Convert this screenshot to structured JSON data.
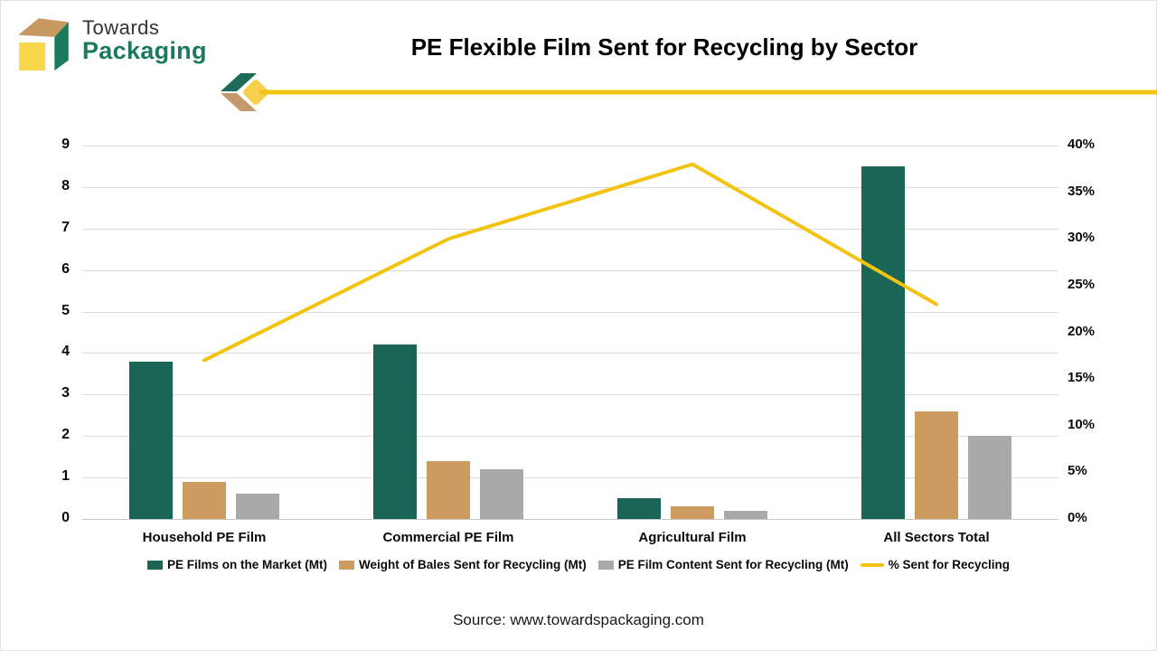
{
  "brand": {
    "towards": "Towards",
    "packaging": "Packaging"
  },
  "title": "PE Flexible Film Sent for Recycling by Sector",
  "source": "Source: www.towardspackaging.com",
  "colors": {
    "bar_green": "#1A6556",
    "bar_tan": "#CD9A60",
    "bar_gray": "#A9A9A9",
    "line_yellow": "#F2C411",
    "logo_green": "#1B7A5E",
    "logo_tan": "#C89A62",
    "logo_yellow": "#F9D64A",
    "divider_yellow": "#F2C411",
    "gridline": "#DCDCDC"
  },
  "chart_data": {
    "type": "bar",
    "subtype": "grouped-bars-with-line-overlay",
    "title": "PE Flexible Film Sent for Recycling by Sector",
    "categories": [
      "Household PE Film",
      "Commercial PE Film",
      "Agricultural Film",
      "All Sectors Total"
    ],
    "series": [
      {
        "name": "PE Films on the Market (Mt)",
        "type": "bar",
        "color": "#1A6556",
        "values": [
          3.8,
          4.2,
          0.5,
          8.5
        ]
      },
      {
        "name": "Weight of Bales Sent for Recycling (Mt)",
        "type": "bar",
        "color": "#CD9A60",
        "values": [
          0.9,
          1.4,
          0.3,
          2.6
        ]
      },
      {
        "name": "PE Film Content Sent for Recycling (Mt)",
        "type": "bar",
        "color": "#A9A9A9",
        "values": [
          0.6,
          1.2,
          0.2,
          2.0
        ]
      },
      {
        "name": "% Sent for Recycling",
        "type": "line",
        "axis": "right",
        "color": "#F2C411",
        "values": [
          17,
          30,
          38,
          23
        ]
      }
    ],
    "xlabel": "",
    "ylabel": "",
    "left_axis": {
      "min": 0,
      "max": 9,
      "ticks": [
        "0",
        "1",
        "2",
        "3",
        "4",
        "5",
        "6",
        "7",
        "8",
        "9"
      ]
    },
    "right_axis": {
      "min": 0,
      "max": 40,
      "ticks": [
        "0%",
        "5%",
        "10%",
        "15%",
        "20%",
        "25%",
        "30%",
        "35%",
        "40%"
      ]
    },
    "grid": true,
    "legend_position": "bottom"
  }
}
